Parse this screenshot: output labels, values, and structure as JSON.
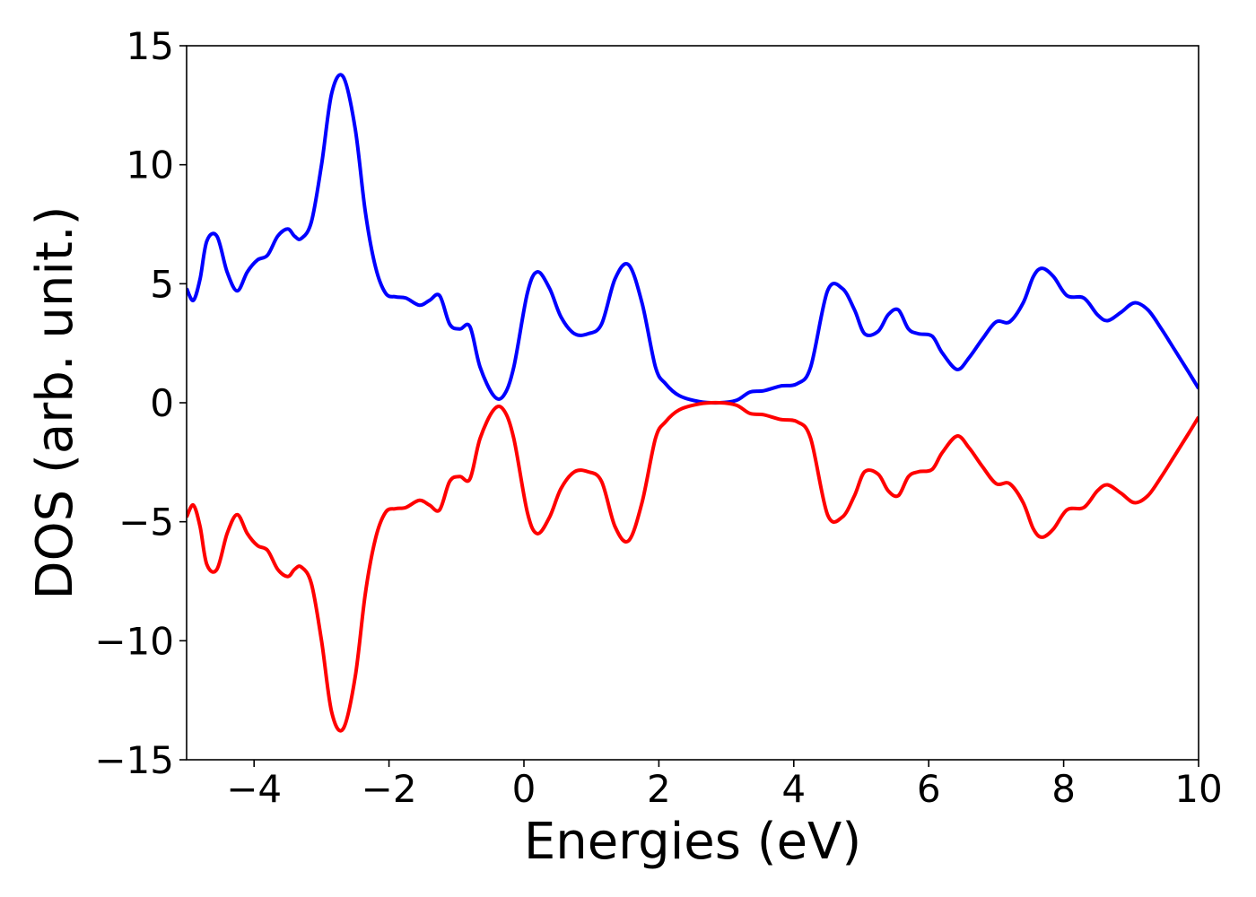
{
  "chart_data": {
    "type": "line",
    "title": "",
    "xlabel": "Energies (eV)",
    "ylabel": "DOS (arb. unit.)",
    "xlim": [
      -5,
      10
    ],
    "ylim": [
      -15,
      15
    ],
    "xticks": [
      -4,
      -2,
      0,
      2,
      4,
      6,
      8,
      10
    ],
    "yticks": [
      -15,
      -10,
      -5,
      0,
      5,
      10,
      15
    ],
    "xtick_labels": [
      "−4",
      "−2",
      "0",
      "2",
      "4",
      "6",
      "8",
      "10"
    ],
    "ytick_labels": [
      "−15",
      "−10",
      "−5",
      "0",
      "5",
      "10",
      "15"
    ],
    "grid": false,
    "legend": "none",
    "series": [
      {
        "color": "#0000ff",
        "x": [
          -5.0,
          -4.9,
          -4.8,
          -4.7,
          -4.55,
          -4.4,
          -4.25,
          -4.1,
          -3.95,
          -3.8,
          -3.65,
          -3.5,
          -3.4,
          -3.3,
          -3.15,
          -3.0,
          -2.85,
          -2.68,
          -2.5,
          -2.35,
          -2.2,
          -2.05,
          -1.9,
          -1.75,
          -1.55,
          -1.4,
          -1.25,
          -1.1,
          -0.95,
          -0.8,
          -0.65,
          -0.45,
          -0.3,
          -0.15,
          0.05,
          0.2,
          0.38,
          0.55,
          0.75,
          0.95,
          1.15,
          1.35,
          1.55,
          1.75,
          1.95,
          2.1,
          2.3,
          2.6,
          2.9,
          3.15,
          3.35,
          3.55,
          3.8,
          4.05,
          4.25,
          4.5,
          4.72,
          4.9,
          5.05,
          5.25,
          5.4,
          5.55,
          5.7,
          5.85,
          6.05,
          6.2,
          6.42,
          6.6,
          6.8,
          7.0,
          7.2,
          7.4,
          7.55,
          7.68,
          7.85,
          8.05,
          8.3,
          8.5,
          8.65,
          8.85,
          9.05,
          9.25,
          9.45,
          9.65,
          9.85,
          10.0
        ],
        "y": [
          4.8,
          4.3,
          5.2,
          6.8,
          7.0,
          5.5,
          4.7,
          5.5,
          6.0,
          6.2,
          7.0,
          7.3,
          7.0,
          6.9,
          7.6,
          10.0,
          13.0,
          13.7,
          11.5,
          8.0,
          5.7,
          4.6,
          4.45,
          4.4,
          4.1,
          4.3,
          4.5,
          3.3,
          3.1,
          3.2,
          1.5,
          0.3,
          0.3,
          1.5,
          4.6,
          5.5,
          4.8,
          3.6,
          2.9,
          2.9,
          3.3,
          5.2,
          5.8,
          4.2,
          1.5,
          0.8,
          0.3,
          0.05,
          0.0,
          0.1,
          0.45,
          0.5,
          0.7,
          0.8,
          1.5,
          4.7,
          4.8,
          3.9,
          2.9,
          3.0,
          3.7,
          3.9,
          3.1,
          2.9,
          2.8,
          2.1,
          1.4,
          1.9,
          2.7,
          3.4,
          3.4,
          4.2,
          5.3,
          5.65,
          5.3,
          4.5,
          4.4,
          3.7,
          3.45,
          3.8,
          4.2,
          3.9,
          3.1,
          2.2,
          1.3,
          0.6
        ]
      },
      {
        "color": "#ff0000",
        "x": [
          -5.0,
          -4.9,
          -4.8,
          -4.7,
          -4.55,
          -4.4,
          -4.25,
          -4.1,
          -3.95,
          -3.8,
          -3.65,
          -3.5,
          -3.4,
          -3.3,
          -3.15,
          -3.0,
          -2.85,
          -2.68,
          -2.5,
          -2.35,
          -2.2,
          -2.05,
          -1.9,
          -1.75,
          -1.55,
          -1.4,
          -1.25,
          -1.1,
          -0.95,
          -0.8,
          -0.65,
          -0.45,
          -0.3,
          -0.15,
          0.05,
          0.2,
          0.38,
          0.55,
          0.75,
          0.95,
          1.15,
          1.35,
          1.55,
          1.75,
          1.95,
          2.1,
          2.3,
          2.6,
          2.9,
          3.15,
          3.35,
          3.55,
          3.8,
          4.05,
          4.25,
          4.5,
          4.72,
          4.9,
          5.05,
          5.25,
          5.4,
          5.55,
          5.7,
          5.85,
          6.05,
          6.2,
          6.42,
          6.6,
          6.8,
          7.0,
          7.2,
          7.4,
          7.55,
          7.68,
          7.85,
          8.05,
          8.3,
          8.5,
          8.65,
          8.85,
          9.05,
          9.25,
          9.45,
          9.65,
          9.85,
          10.0
        ],
        "y": [
          -4.8,
          -4.3,
          -5.2,
          -6.8,
          -7.0,
          -5.5,
          -4.7,
          -5.5,
          -6.0,
          -6.2,
          -7.0,
          -7.3,
          -7.0,
          -6.9,
          -7.6,
          -10.0,
          -13.0,
          -13.7,
          -11.5,
          -8.0,
          -5.7,
          -4.6,
          -4.45,
          -4.4,
          -4.1,
          -4.3,
          -4.5,
          -3.3,
          -3.1,
          -3.2,
          -1.5,
          -0.3,
          -0.3,
          -1.5,
          -4.6,
          -5.5,
          -4.8,
          -3.6,
          -2.9,
          -2.9,
          -3.3,
          -5.2,
          -5.8,
          -4.2,
          -1.5,
          -0.8,
          -0.3,
          -0.05,
          0.0,
          -0.1,
          -0.45,
          -0.5,
          -0.7,
          -0.8,
          -1.5,
          -4.7,
          -4.8,
          -3.9,
          -2.9,
          -3.0,
          -3.7,
          -3.9,
          -3.1,
          -2.9,
          -2.8,
          -2.1,
          -1.4,
          -1.9,
          -2.7,
          -3.4,
          -3.4,
          -4.2,
          -5.3,
          -5.65,
          -5.3,
          -4.5,
          -4.4,
          -3.7,
          -3.45,
          -3.8,
          -4.2,
          -3.9,
          -3.1,
          -2.2,
          -1.3,
          -0.6
        ]
      }
    ]
  }
}
